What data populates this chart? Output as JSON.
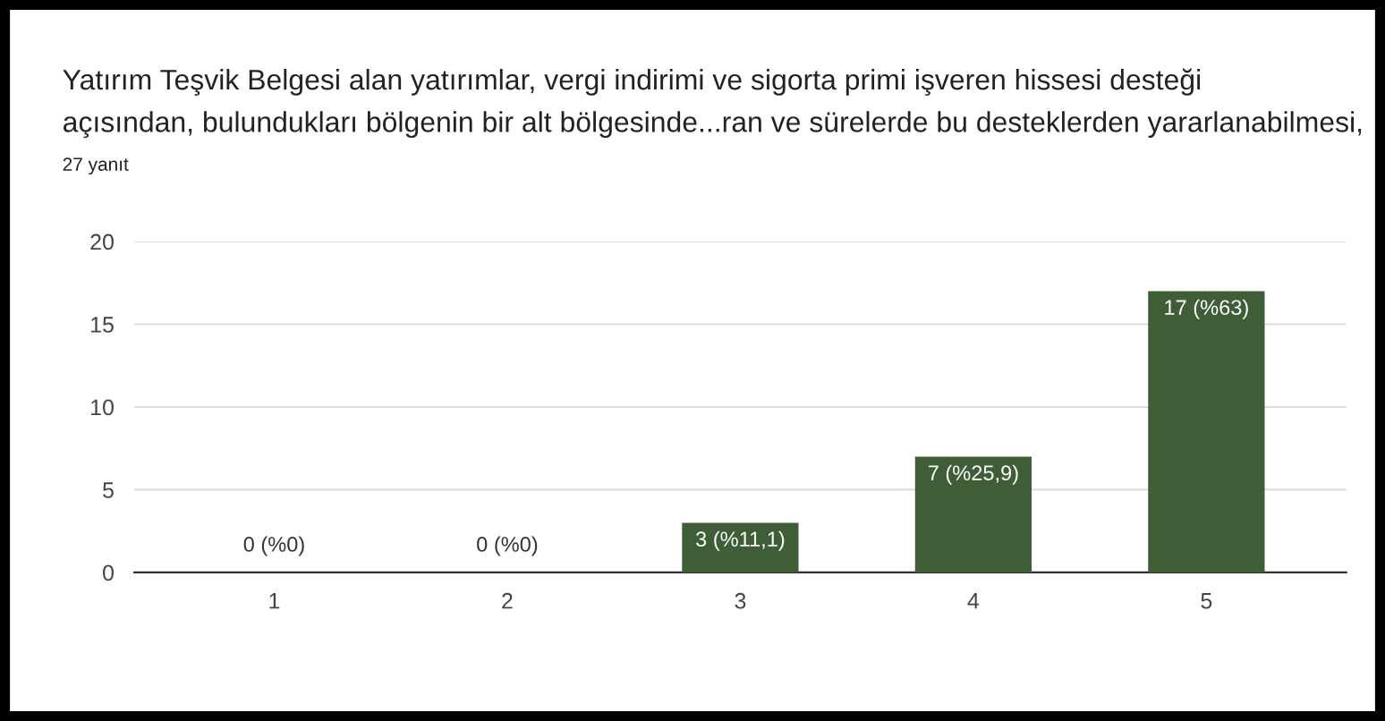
{
  "chart_data": {
    "type": "bar",
    "title": "Yatırım Teşvik Belgesi alan yatırımlar, vergi indirimi ve sigorta primi işveren hissesi desteği\naçısından, bulundukları bölgenin bir alt bölgesinde...ran ve sürelerde bu desteklerden yararlanabilmesi,",
    "subtitle": "27 yanıt",
    "categories": [
      "1",
      "2",
      "3",
      "4",
      "5"
    ],
    "values": [
      0,
      0,
      3,
      7,
      17
    ],
    "value_labels": [
      "0 (%0)",
      "0 (%0)",
      "3 (%11,1)",
      "7 (%25,9)",
      "17 (%63)"
    ],
    "color": "#3f5e37",
    "ylim": [
      0,
      20
    ],
    "yticks": [
      0,
      5,
      10,
      15,
      20
    ],
    "grid": "y"
  }
}
